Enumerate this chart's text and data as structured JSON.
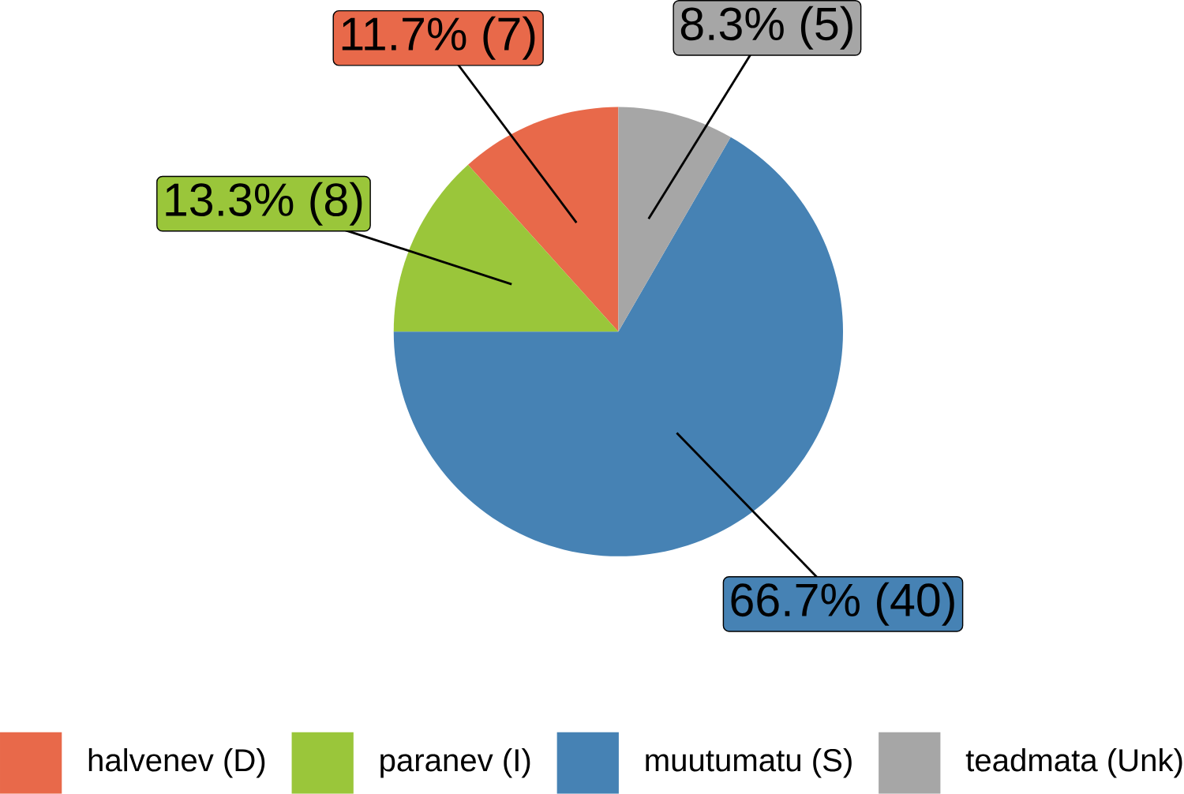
{
  "chart_data": {
    "type": "pie",
    "categories": [
      "halvenev (D)",
      "paranev (I)",
      "muutumatu (S)",
      "teadmata (Unk)"
    ],
    "values": [
      7,
      8,
      40,
      5
    ],
    "colors": [
      "#e8694a",
      "#9ac63a",
      "#4682b4",
      "#a6a6a6"
    ],
    "value_labels": [
      "11.7% (7)",
      "13.3% (8)",
      "66.7% (40)",
      "8.3% (5)"
    ],
    "legend": "bottom"
  }
}
